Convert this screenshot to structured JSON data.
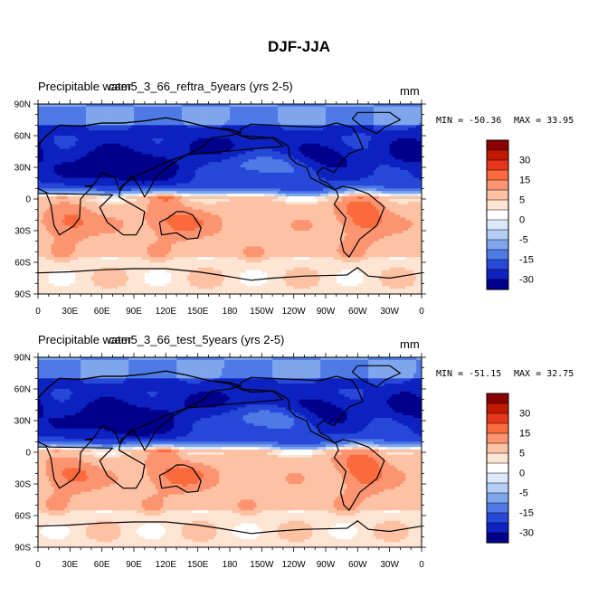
{
  "figure": {
    "title": "DJF-JJA"
  },
  "chart_data": [
    {
      "type": "heatmap",
      "variable": "Precipitable water",
      "case": "cam5_3_66_reftra_5years (yrs 2-5)",
      "units": "mm",
      "min_label": "MIN = -50.36",
      "max_label": "MAX =  33.95",
      "min": -50.36,
      "max": 33.95,
      "xlim": [
        0,
        360
      ],
      "ylim": [
        -90,
        90
      ],
      "xticks": [
        "0",
        "30E",
        "60E",
        "90E",
        "120E",
        "150E",
        "180",
        "150W",
        "120W",
        "90W",
        "60W",
        "30W",
        "0"
      ],
      "yticks": [
        "90N",
        "60N",
        "30N",
        "0",
        "30S",
        "60S",
        "90S"
      ]
    },
    {
      "type": "heatmap",
      "variable": "Precipitable water",
      "case": "cam5_3_66_test_5years (yrs 2-5)",
      "units": "mm",
      "min_label": "MIN = -51.15",
      "max_label": "MAX =  32.75",
      "min": -51.15,
      "max": 32.75,
      "xlim": [
        0,
        360
      ],
      "ylim": [
        -90,
        90
      ],
      "xticks": [
        "0",
        "30E",
        "60E",
        "90E",
        "120E",
        "150E",
        "180",
        "150W",
        "120W",
        "90W",
        "60W",
        "30W",
        "0"
      ],
      "yticks": [
        "90N",
        "60N",
        "30N",
        "0",
        "30S",
        "60S",
        "90S"
      ]
    }
  ],
  "colorbar": {
    "labels": [
      "30",
      "15",
      "5",
      "0",
      "-5",
      "-15",
      "-30"
    ],
    "colors": [
      "#8b0000",
      "#c21a00",
      "#e8361c",
      "#fa6a3c",
      "#fc9471",
      "#fdc1a3",
      "#fde4d3",
      "#ffffff",
      "#dce9fb",
      "#b4cdf5",
      "#7fa6ec",
      "#4f7ae6",
      "#2748d8",
      "#0d22c0",
      "#00008c"
    ]
  }
}
